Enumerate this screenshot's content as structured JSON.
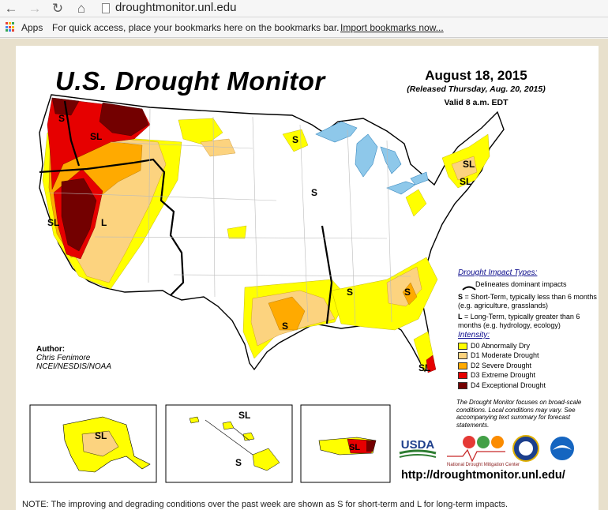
{
  "browser": {
    "url": "droughtmonitor.unl.edu",
    "apps_label": "Apps",
    "bookmarks_hint": "For quick access, place your bookmarks here on the bookmarks bar.",
    "import_link": "Import bookmarks now..."
  },
  "map": {
    "title": "U.S. Drought Monitor",
    "date": "August 18, 2015",
    "released": "(Released Thursday, Aug. 20, 2015)",
    "valid": "Valid 8 a.m. EDT",
    "author_label": "Author:",
    "author_name": "Chris Fenimore",
    "author_org": "NCEI/NESDIS/NOAA",
    "region_labels": [
      "S",
      "SL",
      "SL",
      "L",
      "S",
      "S",
      "S",
      "S",
      "SL",
      "SL",
      "SL",
      "S",
      "SL"
    ],
    "inset_labels": {
      "alaska": "SL",
      "hawaii_top": "SL",
      "hawaii_bottom": "S",
      "puerto_rico": "SL"
    },
    "url": "http://droughtmonitor.unl.edu/",
    "bottom_note": "NOTE: The improving and degrading conditions over the past week are shown as S for short-term and L for long-term impacts."
  },
  "legend": {
    "impact_title": "Drought Impact Types:",
    "delineates": "Delineates dominant impacts",
    "s_key": "S",
    "s_desc": "= Short-Term, typically less than 6 months (e.g. agriculture, grasslands)",
    "l_key": "L",
    "l_desc": "= Long-Term, typically greater than 6 months (e.g. hydrology, ecology)",
    "intensity_title": "Intensity:",
    "intensity": [
      {
        "label": "D0 Abnormally Dry",
        "color": "#ffff00"
      },
      {
        "label": "D1 Moderate Drought",
        "color": "#fcd37f"
      },
      {
        "label": "D2 Severe Drought",
        "color": "#ffaa00"
      },
      {
        "label": "D3 Extreme Drought",
        "color": "#e60000"
      },
      {
        "label": "D4 Exceptional Drought",
        "color": "#730000"
      }
    ],
    "focus_note": "The Drought Monitor focuses on broad-scale conditions. Local conditions may vary. See accompanying text summary for forecast statements."
  },
  "logos": {
    "usda": "USDA",
    "ndmc": "National Drought Mitigation Center"
  },
  "colors": {
    "water": "#a6cfe8",
    "lake": "#8ec8ea",
    "d0": "#ffff00",
    "d1": "#fcd37f",
    "d2": "#ffaa00",
    "d3": "#e60000",
    "d4": "#730000"
  }
}
